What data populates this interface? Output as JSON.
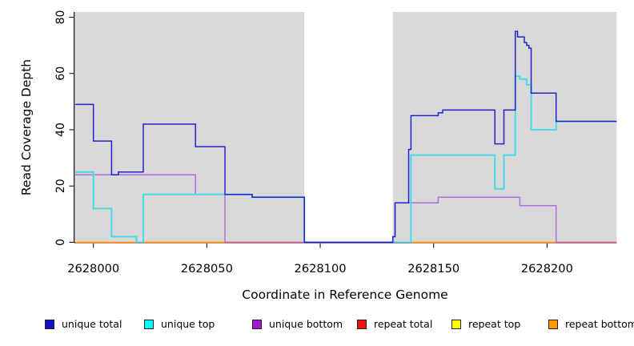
{
  "chart_data": {
    "type": "line",
    "subtype": "step-coverage",
    "title": "",
    "xlabel": "Coordinate in Reference Genome",
    "ylabel": "Read Coverage Depth",
    "xlim": [
      2627992,
      2628230
    ],
    "ylim": [
      0,
      80
    ],
    "x_ticks": [
      "2628000",
      "2628050",
      "2628100",
      "2628150",
      "2628200"
    ],
    "x_tick_values": [
      2628000,
      2628050,
      2628100,
      2628150,
      2628200
    ],
    "y_ticks": [
      "0",
      "20",
      "40",
      "60",
      "80"
    ],
    "y_tick_values": [
      0,
      20,
      40,
      60,
      80
    ],
    "grid": false,
    "plot_bg_color": "#d9d9d9",
    "masked_region": {
      "from": 2628093,
      "to": 2628132,
      "color": "#ffffff"
    },
    "legend_position": "bottom",
    "series": [
      {
        "name": "unique total",
        "line_color": "#2323cd",
        "legend_fill": "#1111cc",
        "steps": [
          [
            2627992,
            49
          ],
          [
            2628000,
            36
          ],
          [
            2628008,
            24
          ],
          [
            2628011,
            25
          ],
          [
            2628022,
            42
          ],
          [
            2628045,
            34
          ],
          [
            2628058,
            17
          ],
          [
            2628070,
            16
          ],
          [
            2628093,
            0
          ],
          [
            2628132,
            2
          ],
          [
            2628133,
            14
          ],
          [
            2628139,
            33
          ],
          [
            2628140,
            45
          ],
          [
            2628152,
            46
          ],
          [
            2628154,
            47
          ],
          [
            2628177,
            35
          ],
          [
            2628181,
            47
          ],
          [
            2628186,
            75
          ],
          [
            2628187,
            73
          ],
          [
            2628190,
            71
          ],
          [
            2628191,
            70
          ],
          [
            2628192,
            69
          ],
          [
            2628193,
            53
          ],
          [
            2628204,
            43
          ]
        ]
      },
      {
        "name": "unique top",
        "line_color": "#45dce8",
        "legend_fill": "#00ffff",
        "steps": [
          [
            2627992,
            25
          ],
          [
            2628000,
            12
          ],
          [
            2628008,
            2
          ],
          [
            2628019,
            0
          ],
          [
            2628022,
            17
          ],
          [
            2628070,
            16
          ],
          [
            2628093,
            0
          ],
          [
            2628140,
            31
          ],
          [
            2628177,
            19
          ],
          [
            2628181,
            31
          ],
          [
            2628186,
            59
          ],
          [
            2628188,
            58
          ],
          [
            2628191,
            56
          ],
          [
            2628193,
            40
          ],
          [
            2628204,
            43
          ]
        ]
      },
      {
        "name": "unique bottom",
        "line_color": "#b26fd9",
        "legend_fill": "#a018cc",
        "steps": [
          [
            2627992,
            24
          ],
          [
            2628045,
            17
          ],
          [
            2628058,
            0
          ],
          [
            2628132,
            2
          ],
          [
            2628133,
            14
          ],
          [
            2628152,
            16
          ],
          [
            2628188,
            13
          ],
          [
            2628204,
            0
          ]
        ]
      },
      {
        "name": "repeat total",
        "line_color": "#cc3344",
        "legend_fill": "#ee1111",
        "steps": [
          [
            2627992,
            0
          ]
        ]
      },
      {
        "name": "repeat top",
        "line_color": "#ffff33",
        "legend_fill": "#ffff00",
        "steps": [
          [
            2627992,
            0
          ]
        ]
      },
      {
        "name": "repeat bottom",
        "line_color": "#ff9912",
        "legend_fill": "#ff9900",
        "steps": [
          [
            2627992,
            0
          ]
        ]
      }
    ]
  }
}
